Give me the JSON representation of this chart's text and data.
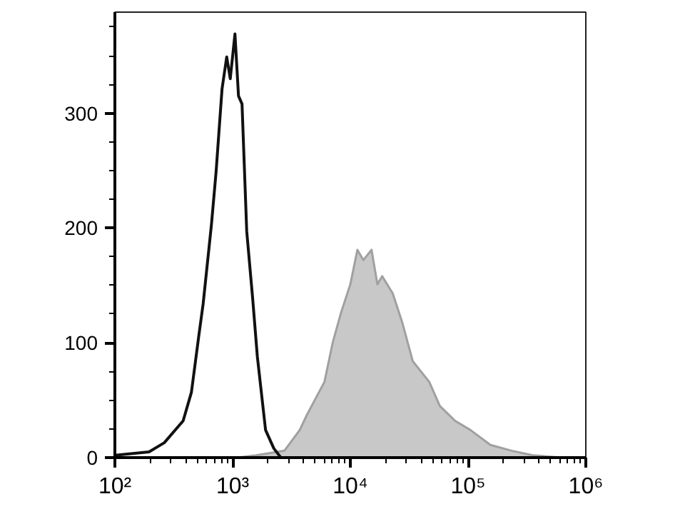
{
  "chart_data": {
    "type": "line",
    "log": "x",
    "grid": false,
    "xlim": [
      100,
      1000000
    ],
    "ylim": [
      0,
      388
    ],
    "xticks": [
      {
        "value": 100,
        "label": "10²"
      },
      {
        "value": 1000,
        "label": "10³"
      },
      {
        "value": 10000,
        "label": "10⁴"
      },
      {
        "value": 100000,
        "label": "10⁵"
      },
      {
        "value": 1000000,
        "label": "10⁶"
      }
    ],
    "yticks": [
      0,
      100,
      200,
      300
    ],
    "series": [
      {
        "type": "area",
        "color": "#c8c8c8",
        "x": [
          1096,
          1585,
          2754,
          3715,
          4266,
          6026,
          7079,
          8318,
          10000,
          11482,
          12882,
          15136,
          16982,
          18621,
          22909,
          27542,
          33884,
          46774,
          57544,
          77625,
          104713,
          154882,
          234423,
          354813,
          630957,
          1000000
        ],
        "values": [
          0,
          2,
          6,
          24,
          37,
          66,
          100,
          126,
          151,
          181,
          172,
          181,
          151,
          158,
          143,
          118,
          84,
          66,
          45,
          32,
          24,
          11,
          6,
          2,
          0,
          0
        ]
      },
      {
        "color": "#111111",
        "x": [
          100,
          195,
          263,
          380,
          447,
          513,
          562,
          661,
          724,
          813,
          891,
          955,
          1047,
          1122,
          1202,
          1318,
          1479,
          1622,
          1905,
          2239,
          2570,
          1000000
        ],
        "values": [
          2,
          5,
          13,
          32,
          57,
          104,
          134,
          203,
          249,
          321,
          349,
          330,
          369,
          315,
          308,
          197,
          139,
          88,
          24,
          8,
          0,
          0
        ]
      }
    ]
  }
}
